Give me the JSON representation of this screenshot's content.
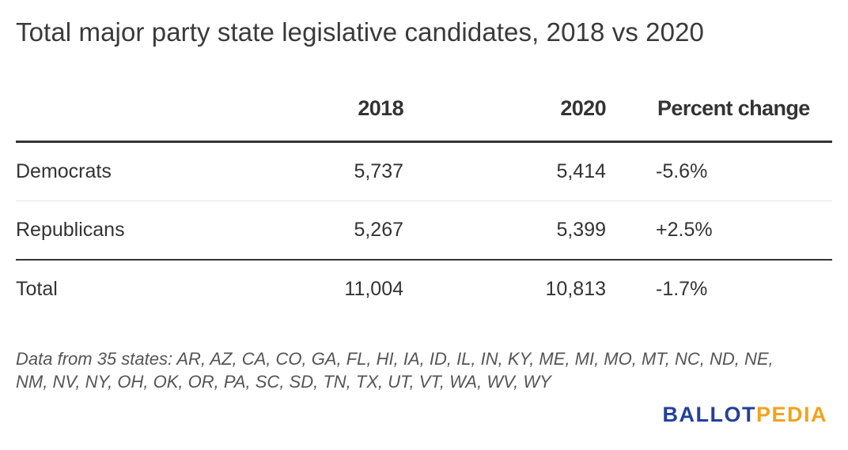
{
  "title": "Total major party state legislative candidates, 2018 vs 2020",
  "chart_data": {
    "type": "table",
    "title": "Total major party state legislative candidates, 2018 vs 2020",
    "columns": [
      "",
      "2018",
      "2020",
      "Percent change"
    ],
    "rows": [
      {
        "label": "Democrats",
        "v2018": "5,737",
        "v2020": "5,414",
        "pct": "-5.6%"
      },
      {
        "label": "Republicans",
        "v2018": "5,267",
        "v2020": "5,399",
        "pct": "+2.5%"
      }
    ],
    "total": {
      "label": "Total",
      "v2018": "11,004",
      "v2020": "10,813",
      "pct": "-1.7%"
    }
  },
  "note": "Data from 35 states: AR, AZ, CA, CO, GA, FL, HI, IA, ID, IL, IN, KY, ME, MI, MO, MT, NC, ND, NE, NM, NV, NY, OH, OK, OR, PA, SC, SD, TN, TX, UT, VT, WA, WV, WY",
  "logo": {
    "part1": "BALLOT",
    "part2": "PEDIA",
    "color1": "#23409a",
    "color2": "#f0a31c"
  }
}
